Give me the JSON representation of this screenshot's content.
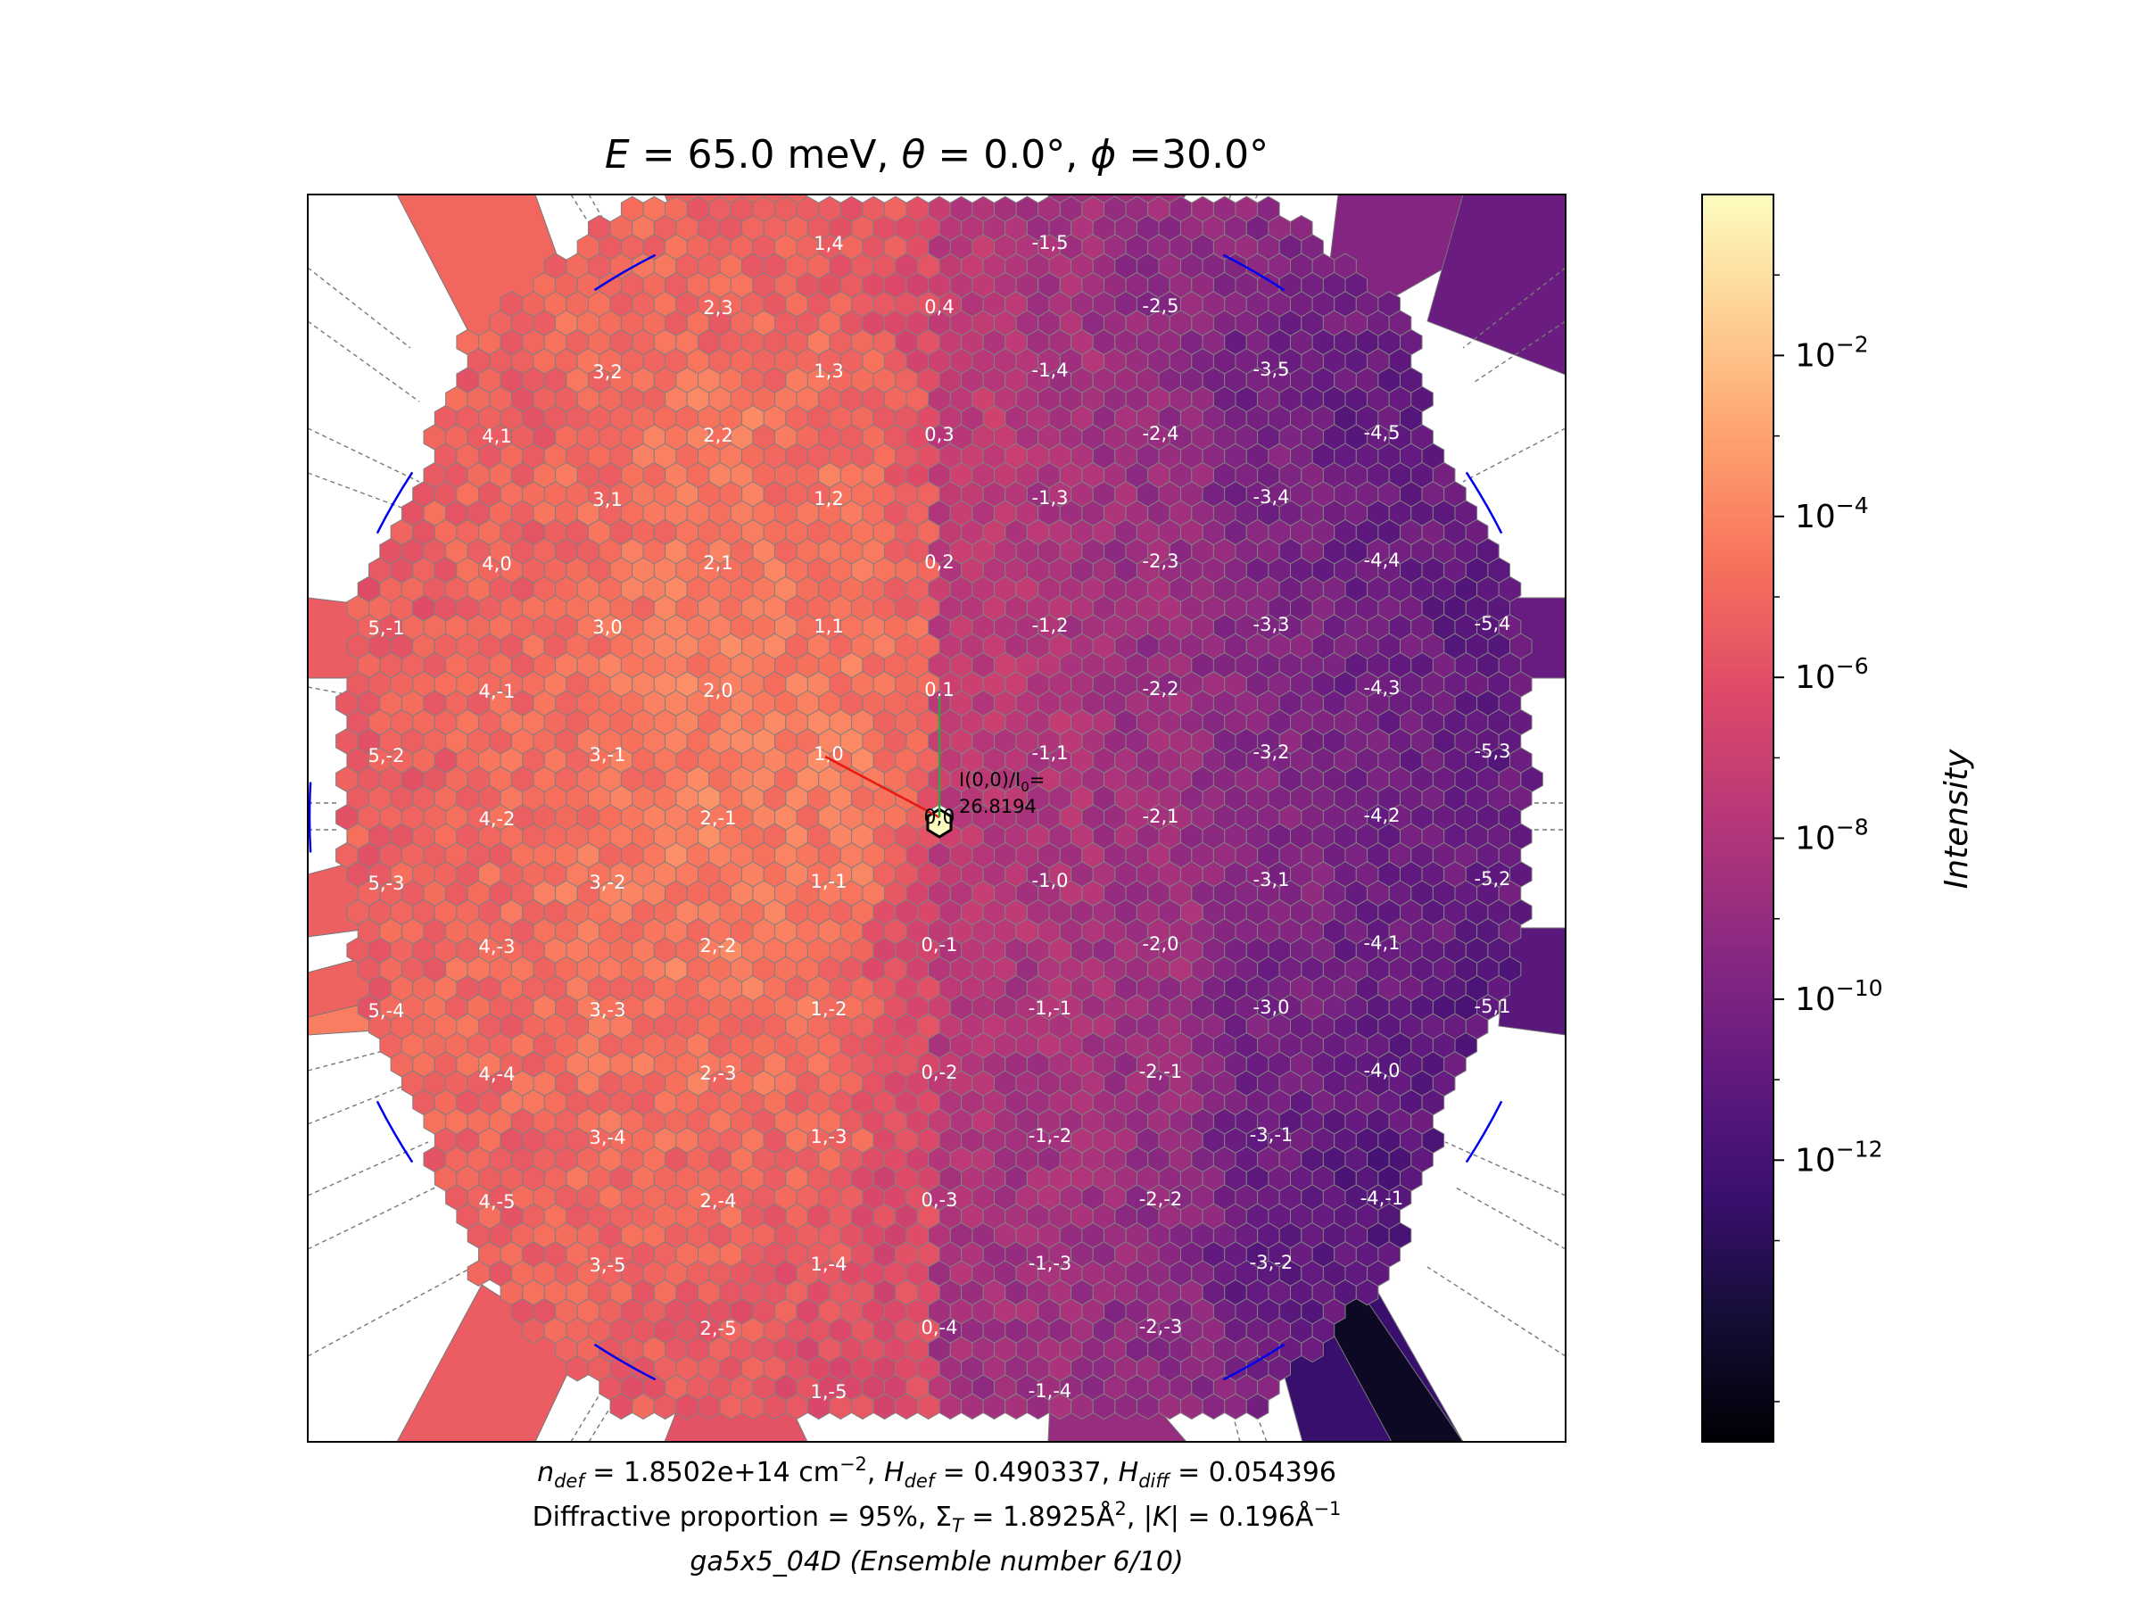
{
  "chart_data": {
    "type": "heatmap",
    "title": "E = 65.0 meV, θ = 0.0°, ϕ =30.0°",
    "colorbar": {
      "label": "Intensity",
      "scale": "log",
      "colormap": "magma",
      "tick_labels": [
        "10",
        "10",
        "10",
        "10",
        "10",
        "10"
      ],
      "tick_exponents": [
        "-2",
        "-4",
        "-6",
        "-8",
        "-10",
        "-12"
      ],
      "log_range": [
        -15.5,
        0.0
      ]
    },
    "annotation": {
      "line1": "I(0,0)/I",
      "subscript": "0",
      "line1_end": "=",
      "value": "26.8194"
    },
    "lattice_labels": [
      {
        "label": "1,4",
        "h": 1,
        "k": 4,
        "log_intensity": -5.3
      },
      {
        "label": "-1,5",
        "h": -1,
        "k": 5,
        "log_intensity": -8.4
      },
      {
        "label": "2,3",
        "h": 2,
        "k": 3,
        "log_intensity": -5.0
      },
      {
        "label": "0,4",
        "h": 0,
        "k": 4,
        "log_intensity": -6.5
      },
      {
        "label": "-2,5",
        "h": -2,
        "k": 5,
        "log_intensity": -9.2
      },
      {
        "label": "3,2",
        "h": 3,
        "k": 2,
        "log_intensity": -4.9
      },
      {
        "label": "1,3",
        "h": 1,
        "k": 3,
        "log_intensity": -4.8
      },
      {
        "label": "-1,4",
        "h": -1,
        "k": 4,
        "log_intensity": -8.3
      },
      {
        "label": "-3,5",
        "h": -3,
        "k": 5,
        "log_intensity": -10.3
      },
      {
        "label": "4,1",
        "h": 4,
        "k": 1,
        "log_intensity": -5.3
      },
      {
        "label": "2,2",
        "h": 2,
        "k": 2,
        "log_intensity": -4.4
      },
      {
        "label": "0,3",
        "h": 0,
        "k": 3,
        "log_intensity": -5.6
      },
      {
        "label": "-2,4",
        "h": -2,
        "k": 4,
        "log_intensity": -8.9
      },
      {
        "label": "-4,5",
        "h": -4,
        "k": 5,
        "log_intensity": -10.9
      },
      {
        "label": "3,1",
        "h": 3,
        "k": 1,
        "log_intensity": -4.8
      },
      {
        "label": "1,2",
        "h": 1,
        "k": 2,
        "log_intensity": -4.6
      },
      {
        "label": "-1,3",
        "h": -1,
        "k": 3,
        "log_intensity": -8.2
      },
      {
        "label": "-3,4",
        "h": -3,
        "k": 4,
        "log_intensity": -10.0
      },
      {
        "label": "4,0",
        "h": 4,
        "k": 0,
        "log_intensity": -5.2
      },
      {
        "label": "2,1",
        "h": 2,
        "k": 1,
        "log_intensity": -4.3
      },
      {
        "label": "0,2",
        "h": 0,
        "k": 2,
        "log_intensity": -5.1
      },
      {
        "label": "-2,3",
        "h": -2,
        "k": 3,
        "log_intensity": -8.8
      },
      {
        "label": "-4,4",
        "h": -4,
        "k": 4,
        "log_intensity": -10.6
      },
      {
        "label": "5,-1",
        "h": 5,
        "k": -1,
        "log_intensity": -5.5
      },
      {
        "label": "3,0",
        "h": 3,
        "k": 0,
        "log_intensity": -4.6
      },
      {
        "label": "1,1",
        "h": 1,
        "k": 1,
        "log_intensity": -4.4
      },
      {
        "label": "-1,2",
        "h": -1,
        "k": 2,
        "log_intensity": -8.1
      },
      {
        "label": "-3,3",
        "h": -3,
        "k": 3,
        "log_intensity": -9.8
      },
      {
        "label": "-5,4",
        "h": -5,
        "k": 4,
        "log_intensity": -11.0
      },
      {
        "label": "4,-1",
        "h": 4,
        "k": -1,
        "log_intensity": -5.0
      },
      {
        "label": "2,0",
        "h": 2,
        "k": 0,
        "log_intensity": -4.2
      },
      {
        "label": "0,1",
        "h": 0,
        "k": 1,
        "log_intensity": -4.8
      },
      {
        "label": "-2,2",
        "h": -2,
        "k": 2,
        "log_intensity": -8.9
      },
      {
        "label": "-4,3",
        "h": -4,
        "k": 3,
        "log_intensity": -10.4
      },
      {
        "label": "5,-2",
        "h": 5,
        "k": -2,
        "log_intensity": -5.4
      },
      {
        "label": "3,-1",
        "h": 3,
        "k": -1,
        "log_intensity": -4.5
      },
      {
        "label": "1,0",
        "h": 1,
        "k": 0,
        "log_intensity": -4.3
      },
      {
        "label": "-1,1",
        "h": -1,
        "k": 1,
        "log_intensity": -7.9
      },
      {
        "label": "-3,2",
        "h": -3,
        "k": 2,
        "log_intensity": -9.6
      },
      {
        "label": "-5,3",
        "h": -5,
        "k": 3,
        "log_intensity": -10.8
      },
      {
        "label": "4,-2",
        "h": 4,
        "k": -2,
        "log_intensity": -4.9
      },
      {
        "label": "2,-1",
        "h": 2,
        "k": -1,
        "log_intensity": -4.1
      },
      {
        "label": "0,0",
        "h": 0,
        "k": 0,
        "log_intensity": 0.5
      },
      {
        "label": "-2,1",
        "h": -2,
        "k": 1,
        "log_intensity": -8.7
      },
      {
        "label": "-4,2",
        "h": -4,
        "k": 2,
        "log_intensity": -10.5
      },
      {
        "label": "5,-3",
        "h": 5,
        "k": -3,
        "log_intensity": -5.3
      },
      {
        "label": "3,-2",
        "h": 3,
        "k": -2,
        "log_intensity": -4.5
      },
      {
        "label": "1,-1",
        "h": 1,
        "k": -1,
        "log_intensity": -4.4
      },
      {
        "label": "-1,0",
        "h": -1,
        "k": 0,
        "log_intensity": -8.0
      },
      {
        "label": "-3,1",
        "h": -3,
        "k": 1,
        "log_intensity": -9.7
      },
      {
        "label": "-5,2",
        "h": -5,
        "k": 2,
        "log_intensity": -10.7
      },
      {
        "label": "4,-3",
        "h": 4,
        "k": -3,
        "log_intensity": -4.9
      },
      {
        "label": "2,-2",
        "h": 2,
        "k": -2,
        "log_intensity": -4.3
      },
      {
        "label": "0,-1",
        "h": 0,
        "k": -1,
        "log_intensity": -7.6
      },
      {
        "label": "-2,0",
        "h": -2,
        "k": 0,
        "log_intensity": -8.6
      },
      {
        "label": "-4,1",
        "h": -4,
        "k": 1,
        "log_intensity": -10.5
      },
      {
        "label": "5,-4",
        "h": 5,
        "k": -4,
        "log_intensity": -5.2
      },
      {
        "label": "3,-3",
        "h": 3,
        "k": -3,
        "log_intensity": -4.6
      },
      {
        "label": "1,-2",
        "h": 1,
        "k": -2,
        "log_intensity": -4.7
      },
      {
        "label": "-1,-1",
        "h": -1,
        "k": -1,
        "log_intensity": -8.2
      },
      {
        "label": "-3,0",
        "h": -3,
        "k": 0,
        "log_intensity": -10.1
      },
      {
        "label": "-5,1",
        "h": -5,
        "k": 1,
        "log_intensity": -11.2
      },
      {
        "label": "4,-4",
        "h": 4,
        "k": -4,
        "log_intensity": -5.0
      },
      {
        "label": "2,-3",
        "h": 2,
        "k": -3,
        "log_intensity": -4.6
      },
      {
        "label": "0,-2",
        "h": 0,
        "k": -2,
        "log_intensity": -7.9
      },
      {
        "label": "-2,-1",
        "h": -2,
        "k": -1,
        "log_intensity": -8.8
      },
      {
        "label": "-4,0",
        "h": -4,
        "k": 0,
        "log_intensity": -10.9
      },
      {
        "label": "3,-4",
        "h": 3,
        "k": -4,
        "log_intensity": -4.8
      },
      {
        "label": "1,-3",
        "h": 1,
        "k": -3,
        "log_intensity": -5.0
      },
      {
        "label": "-1,-2",
        "h": -1,
        "k": -2,
        "log_intensity": -8.4
      },
      {
        "label": "-3,-1",
        "h": -3,
        "k": -1,
        "log_intensity": -10.6
      },
      {
        "label": "4,-5",
        "h": 4,
        "k": -5,
        "log_intensity": -5.3
      },
      {
        "label": "2,-4",
        "h": 2,
        "k": -4,
        "log_intensity": -5.0
      },
      {
        "label": "0,-3",
        "h": 0,
        "k": -3,
        "log_intensity": -8.2
      },
      {
        "label": "-2,-2",
        "h": -2,
        "k": -2,
        "log_intensity": -9.0
      },
      {
        "label": "-4,-1",
        "h": -4,
        "k": -1,
        "log_intensity": -11.5
      },
      {
        "label": "3,-5",
        "h": 3,
        "k": -5,
        "log_intensity": -5.2
      },
      {
        "label": "1,-4",
        "h": 1,
        "k": -4,
        "log_intensity": -5.6
      },
      {
        "label": "-1,-3",
        "h": -1,
        "k": -3,
        "log_intensity": -8.6
      },
      {
        "label": "-3,-2",
        "h": -3,
        "k": -2,
        "log_intensity": -11.0
      },
      {
        "label": "2,-5",
        "h": 2,
        "k": -5,
        "log_intensity": -5.5
      },
      {
        "label": "0,-4",
        "h": 0,
        "k": -4,
        "log_intensity": -8.5
      },
      {
        "label": "-2,-3",
        "h": -2,
        "k": -3,
        "log_intensity": -9.3
      },
      {
        "label": "1,-5",
        "h": 1,
        "k": -5,
        "log_intensity": -6.0
      },
      {
        "label": "-1,-4",
        "h": -1,
        "k": -4,
        "log_intensity": -8.8
      }
    ],
    "caption": {
      "line1": "n_def = 1.8502e+14 cm^-2, H_def = 0.490337, H_diff = 0.054396",
      "line2": "Diffractive proportion = 95%, Σ_T = 1.8925Å², |K| = 0.196Å⁻¹",
      "line3": "ga5x5_04D (Ensemble number 6/10)"
    }
  },
  "text": {
    "title_E": "E",
    "title_main": " = 65.0 meV, ",
    "title_theta": "θ",
    "title_mid": " = 0.0°, ",
    "title_phi": "ϕ",
    "title_end": " =30.0°",
    "cap1_n": "n",
    "cap1_def1": "def",
    "cap1_a": " = 1.8502e+14 cm",
    "cap1_exp": "−2",
    "cap1_b": ", ",
    "cap1_H": "H",
    "cap1_def2": "def",
    "cap1_c": " = 0.490337, ",
    "cap1_H2": "H",
    "cap1_diff": "diff",
    "cap1_d": " = 0.054396",
    "cap2_a": "Diffractive proportion = 95%, Σ",
    "cap2_T": "T",
    "cap2_b": " = 1.8925Å",
    "cap2_sq": "2",
    "cap2_c": ", |",
    "cap2_K": "K",
    "cap2_d": "| = 0.196Å",
    "cap2_exp": "−1",
    "cap3": "ga5x5_04D (Ensemble number 6/10)",
    "colorbar_label": "Intensity",
    "origin_label": "0,0"
  }
}
